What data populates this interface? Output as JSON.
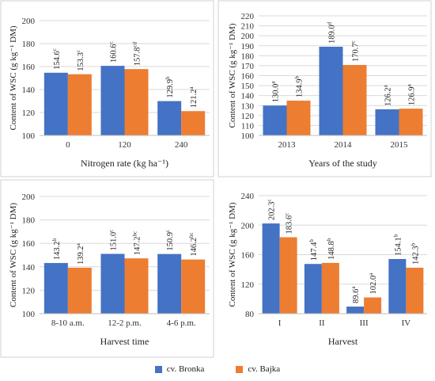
{
  "legend": [
    {
      "name": "cv. Bronka",
      "color": "#4472C4"
    },
    {
      "name": "cv. Bajka",
      "color": "#ED7D31"
    }
  ],
  "chart_data": [
    {
      "type": "bar",
      "ylabel": "Content of WSC (g kg⁻¹ DM)",
      "xlabel": "Nitrogen rate (kg ha⁻¹)",
      "ylim": [
        100,
        200
      ],
      "yticks": [
        100,
        120,
        140,
        160,
        180,
        200
      ],
      "categories": [
        "0",
        "120",
        "240"
      ],
      "series": [
        {
          "name": "cv. Bronka",
          "values": [
            154.6,
            160.6,
            129.9
          ],
          "labels": [
            "154.6",
            "160.6",
            "129.9"
          ],
          "sup": [
            "c",
            "c",
            "b"
          ]
        },
        {
          "name": "cv. Bajka",
          "values": [
            153.3,
            157.8,
            121.2
          ],
          "labels": [
            "153.3",
            "157.8",
            "121.2"
          ],
          "sup": [
            "c",
            "cd",
            "a"
          ]
        }
      ]
    },
    {
      "type": "bar",
      "ylabel": "Content of WSC (g kg⁻¹ DM)",
      "xlabel": "Years of the study",
      "ylim": [
        100,
        220
      ],
      "yticks": [
        100,
        110,
        120,
        130,
        140,
        150,
        160,
        170,
        180,
        190,
        200,
        210,
        220
      ],
      "categories": [
        "2013",
        "2014",
        "2015"
      ],
      "series": [
        {
          "name": "cv. Bronka",
          "values": [
            130.0,
            189.0,
            126.2
          ],
          "labels": [
            "130.0",
            "189.0",
            "126.2"
          ],
          "sup": [
            "a",
            "d",
            "a"
          ]
        },
        {
          "name": "cv. Bajka",
          "values": [
            134.9,
            170.7,
            126.9
          ],
          "labels": [
            "134.9",
            "170.7",
            "126.9"
          ],
          "sup": [
            "b",
            "c",
            "a"
          ]
        }
      ]
    },
    {
      "type": "bar",
      "ylabel": "Content of WSC (g kg⁻¹ DM)",
      "xlabel": "Harvest time",
      "ylim": [
        100,
        200
      ],
      "yticks": [
        100,
        120,
        140,
        160,
        180,
        200
      ],
      "categories": [
        "8-10 a.m.",
        "12-2 p.m.",
        "4-6 p.m."
      ],
      "series": [
        {
          "name": "cv. Bronka",
          "values": [
            143.2,
            151.0,
            150.9
          ],
          "labels": [
            "143.2",
            "151.0",
            "150.9"
          ],
          "sup": [
            "b",
            "c",
            "c"
          ]
        },
        {
          "name": "cv. Bajka",
          "values": [
            139.2,
            147.2,
            146.2
          ],
          "labels": [
            "139.2",
            "147.2",
            "146.2"
          ],
          "sup": [
            "a",
            "bc",
            "bc"
          ]
        }
      ]
    },
    {
      "type": "bar",
      "ylabel": "Content of WSC (g kg⁻¹ DM)",
      "xlabel": "Harvest",
      "ylim": [
        80,
        240
      ],
      "yticks": [
        80,
        120,
        160,
        200,
        240
      ],
      "categories": [
        "I",
        "II",
        "III",
        "IV"
      ],
      "series": [
        {
          "name": "cv. Bronka",
          "values": [
            202.3,
            147.4,
            89.6,
            154.1
          ],
          "labels": [
            "202.3",
            "147.4",
            "89.6",
            "154.1"
          ],
          "sup": [
            "c",
            "b",
            "a",
            "b"
          ]
        },
        {
          "name": "cv. Bajka",
          "values": [
            183.6,
            148.8,
            102.0,
            142.3
          ],
          "labels": [
            "183.6",
            "148.8",
            "102.0",
            "142.3"
          ],
          "sup": [
            "c",
            "b",
            "a",
            "b"
          ]
        }
      ]
    }
  ]
}
